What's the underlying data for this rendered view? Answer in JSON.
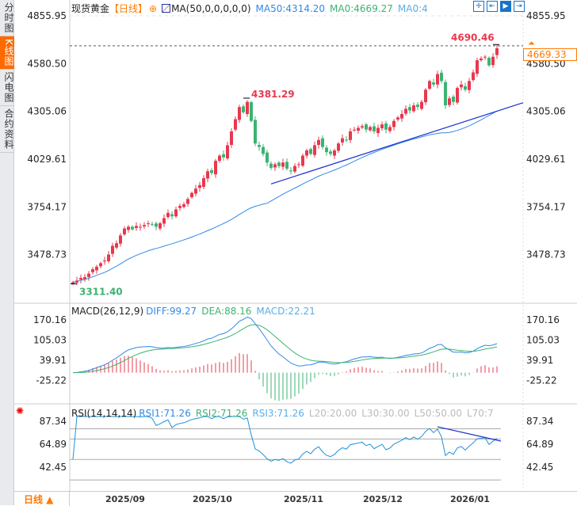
{
  "sidebar": {
    "tabs": [
      {
        "label": "分时图",
        "active": false
      },
      {
        "label": "K线图",
        "active": true
      },
      {
        "label": "闪电图",
        "active": false
      },
      {
        "label": "合约资料",
        "active": false
      }
    ]
  },
  "header": {
    "symbol": "现货黄金",
    "period": "【日线】",
    "ma_name": "MA(50,0,0,0,0,0)",
    "ma50": "MA50:4314.20",
    "ma0a": "MA0:4669.27",
    "ma0b": "MA0:4"
  },
  "toolbar": [
    {
      "icon": "crosshair-icon",
      "glyph": "✛"
    },
    {
      "icon": "zoom-range-icon",
      "glyph": "⇤"
    },
    {
      "icon": "play-icon",
      "glyph": "▶"
    },
    {
      "icon": "goto-end-icon",
      "glyph": "⇥"
    }
  ],
  "macd_header": {
    "name": "MACD(26,12,9)",
    "diff": "DIFF:99.27",
    "dea": "DEA:88.16",
    "macd": "MACD:22.21"
  },
  "rsi_header": {
    "name": "RSI(14,14,14)",
    "rsi1": "RSI1:71.26",
    "rsi2": "RSI2:71.26",
    "rsi3": "RSI3:71.26",
    "l20": "L20:20.00",
    "l30": "L30:30.00",
    "l50": "L50:50.00",
    "l70": "L70:7"
  },
  "current_price": "4669.33",
  "bottom": {
    "period": "日线 ▲"
  },
  "colors": {
    "up": "#e8384f",
    "down": "#3cb371",
    "ma50": "#2f8ae8",
    "diff": "#2f8ae8",
    "dea": "#3cb371",
    "accent": "#ff7a00"
  },
  "chart_data": {
    "type": "candlestick",
    "title": "现货黄金 日线",
    "price_axis_ticks": [
      "4855.95",
      "4580.50",
      "4305.06",
      "4029.61",
      "3754.17",
      "3478.73"
    ],
    "ylim": [
      3311.4,
      4855.95
    ],
    "x_tick_labels": [
      {
        "label": "2025/09",
        "index": 9
      },
      {
        "label": "2025/10",
        "index": 31
      },
      {
        "label": "2025/11",
        "index": 54
      },
      {
        "label": "2025/12",
        "index": 74
      },
      {
        "label": "2026/01",
        "index": 96
      }
    ],
    "closes": [
      3320,
      3330,
      3345,
      3350,
      3370,
      3395,
      3410,
      3430,
      3445,
      3480,
      3530,
      3545,
      3590,
      3630,
      3640,
      3625,
      3645,
      3640,
      3650,
      3660,
      3655,
      3640,
      3660,
      3690,
      3720,
      3700,
      3740,
      3760,
      3770,
      3800,
      3835,
      3860,
      3880,
      3920,
      3960,
      3950,
      4020,
      4050,
      4040,
      4110,
      4190,
      4260,
      4330,
      4300,
      4360,
      4250,
      4120,
      4100,
      4060,
      4010,
      3980,
      4000,
      3990,
      4010,
      3975,
      3960,
      3990,
      4000,
      4050,
      4080,
      4060,
      4110,
      4140,
      4100,
      4070,
      4060,
      4080,
      4120,
      4150,
      4140,
      4190,
      4200,
      4210,
      4220,
      4200,
      4215,
      4190,
      4210,
      4230,
      4200,
      4215,
      4250,
      4270,
      4290,
      4320,
      4310,
      4340,
      4330,
      4360,
      4430,
      4480,
      4460,
      4520,
      4480,
      4340,
      4380,
      4360,
      4440,
      4460,
      4430,
      4480,
      4530,
      4600,
      4610,
      4620,
      4570,
      4620,
      4669
    ],
    "annotations": [
      {
        "label": "4381.29",
        "index": 44,
        "price": 4381.29,
        "kind": "high"
      },
      {
        "label": "3311.40",
        "index": 0,
        "price": 3311.4,
        "kind": "low"
      },
      {
        "label": "4690.46",
        "index": 107,
        "price": 4690.46,
        "kind": "high"
      }
    ],
    "trendline": {
      "from": {
        "index": 50,
        "price": 3887
      },
      "to": {
        "index": 113.6,
        "price": 4355
      }
    },
    "macd_axis_ticks": [
      "170.16",
      "105.03",
      "39.91",
      "-25.22"
    ],
    "macd_ylim": [
      -25.22,
      170.16
    ],
    "rsi_axis_ticks": [
      "87.34",
      "64.89",
      "42.45"
    ],
    "rsi_ylim": [
      42.45,
      87.34
    ],
    "rsi_levels": [
      30,
      50,
      70,
      80
    ],
    "rsi_trendline": {
      "from": {
        "index": 92,
        "value": 82
      },
      "to": {
        "index": 108,
        "value": 68
      }
    }
  }
}
